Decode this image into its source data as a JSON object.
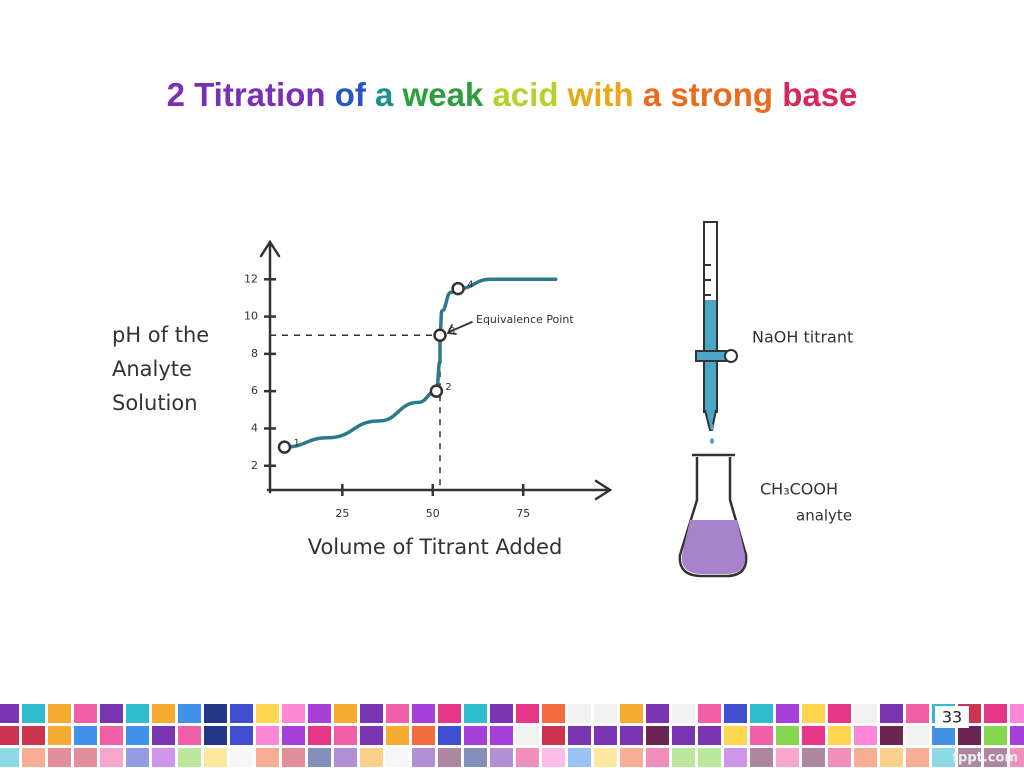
{
  "slide": {
    "title_parts": [
      {
        "text": "2 Titration",
        "color": "#7a2fb8"
      },
      {
        "text": "of",
        "color": "#2456c8"
      },
      {
        "text": "a",
        "color": "#1c8f8a"
      },
      {
        "text": "weak",
        "color": "#2e9e3c"
      },
      {
        "text": "acid",
        "color": "#b6d22a"
      },
      {
        "text": "with",
        "color": "#e8a817"
      },
      {
        "text": "a strong",
        "color": "#ea6a1e"
      },
      {
        "text": "base",
        "color": "#d8285a"
      }
    ],
    "page_number": "33",
    "footer": "fppt.com"
  },
  "chart_data": {
    "type": "line",
    "xlabel": "Volume of Titrant Added",
    "ylabel": "pH of the Analyte Solution",
    "xlim": [
      5,
      99
    ],
    "ylim": [
      0.7,
      14
    ],
    "xticks": [
      25,
      50,
      75
    ],
    "yticks": [
      2,
      4,
      6,
      8,
      10,
      12
    ],
    "color": "#2b7a8c",
    "series": [
      {
        "x": [
          9,
          21,
          35,
          46,
          51,
          52,
          52,
          52.5,
          55,
          57,
          66,
          84
        ],
        "values": [
          3,
          3.5,
          4.4,
          5.4,
          6,
          7.6,
          9,
          10.3,
          11.3,
          11.5,
          12,
          12
        ]
      }
    ],
    "markers": {
      "x": [
        9,
        51,
        52,
        57
      ],
      "values": [
        3,
        6,
        9,
        11.5
      ],
      "labels": [
        "1",
        "2",
        "3",
        "4"
      ]
    },
    "annotation": "Equivalence Point"
  },
  "apparatus": {
    "burette_label": "NaOH titrant",
    "flask_label": "CH₃COOH",
    "flask_sublabel": "analyte"
  }
}
